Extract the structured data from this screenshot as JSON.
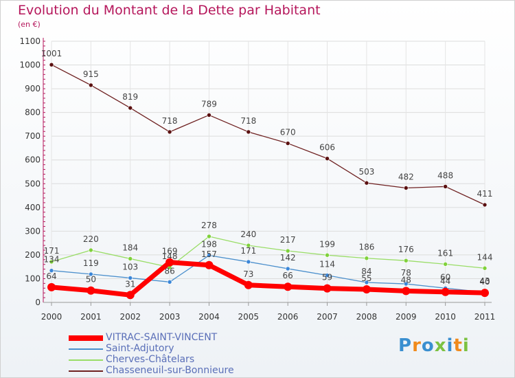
{
  "title": "Evolution du Montant de la Dette par Habitant",
  "unit": "(en €)",
  "logo": "Proxiti",
  "chart_data": {
    "type": "line",
    "title": "Evolution du Montant de la Dette par Habitant",
    "ylabel": "(en €)",
    "ylim": [
      0,
      1100
    ],
    "yticks": [
      0,
      100,
      200,
      300,
      400,
      500,
      600,
      700,
      800,
      900,
      1000,
      1100
    ],
    "categories": [
      "2000",
      "2001",
      "2002",
      "2003",
      "2004",
      "2005",
      "2006",
      "2007",
      "2008",
      "2009",
      "2010",
      "2011"
    ],
    "grid": true,
    "legend_position": "bottom-left",
    "series": [
      {
        "name": "VITRAC-SAINT-VINCENT",
        "color": "#ff0000",
        "values": [
          64,
          50,
          31,
          169,
          157,
          73,
          66,
          59,
          55,
          48,
          44,
          40
        ]
      },
      {
        "name": "Saint-Adjutory",
        "color": "#4a8fcc",
        "values": [
          134,
          119,
          103,
          86,
          198,
          171,
          142,
          114,
          84,
          78,
          60,
          43
        ]
      },
      {
        "name": "Cherves-Châtelars",
        "color": "#99dd66",
        "values": [
          171,
          220,
          184,
          148,
          278,
          240,
          217,
          199,
          186,
          176,
          161,
          144
        ]
      },
      {
        "name": "Chasseneuil-sur-Bonnieure",
        "color": "#6e2020",
        "values": [
          1001,
          915,
          819,
          718,
          789,
          718,
          670,
          606,
          503,
          482,
          488,
          411
        ]
      }
    ]
  }
}
